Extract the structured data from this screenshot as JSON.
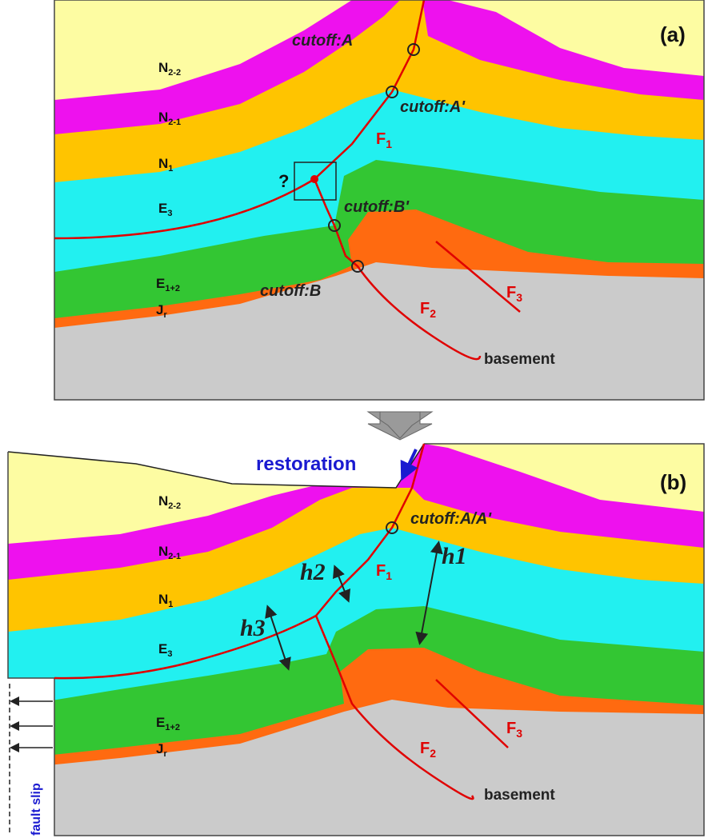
{
  "panel_a": {
    "label": "(a)",
    "layers": [
      {
        "base": "N",
        "sub": "2-2"
      },
      {
        "base": "N",
        "sub": "2-1"
      },
      {
        "base": "N",
        "sub": "1"
      },
      {
        "base": "E",
        "sub": "3"
      },
      {
        "base": "E",
        "sub": "1+2"
      },
      {
        "base": "J",
        "sub": "r"
      }
    ],
    "cutoffs": [
      "cutoff:A",
      "cutoff:A'",
      "cutoff:B'",
      "cutoff:B"
    ],
    "faults": [
      {
        "base": "F",
        "sub": "1"
      },
      {
        "base": "F",
        "sub": "2"
      },
      {
        "base": "F",
        "sub": "3"
      }
    ],
    "question": "?",
    "basement": "basement"
  },
  "panel_b": {
    "label": "(b)",
    "restoration": "restoration",
    "layers": [
      {
        "base": "N",
        "sub": "2-2"
      },
      {
        "base": "N",
        "sub": "2-1"
      },
      {
        "base": "N",
        "sub": "1"
      },
      {
        "base": "E",
        "sub": "3"
      },
      {
        "base": "E",
        "sub": "1+2"
      },
      {
        "base": "J",
        "sub": "r"
      }
    ],
    "cutoff": "cutoff:A/A'",
    "faults": [
      {
        "base": "F",
        "sub": "1"
      },
      {
        "base": "F",
        "sub": "2"
      },
      {
        "base": "F",
        "sub": "3"
      }
    ],
    "thicknesses": [
      "h1",
      "h2",
      "h3"
    ],
    "basement": "basement",
    "fault_slip": "fault slip"
  }
}
